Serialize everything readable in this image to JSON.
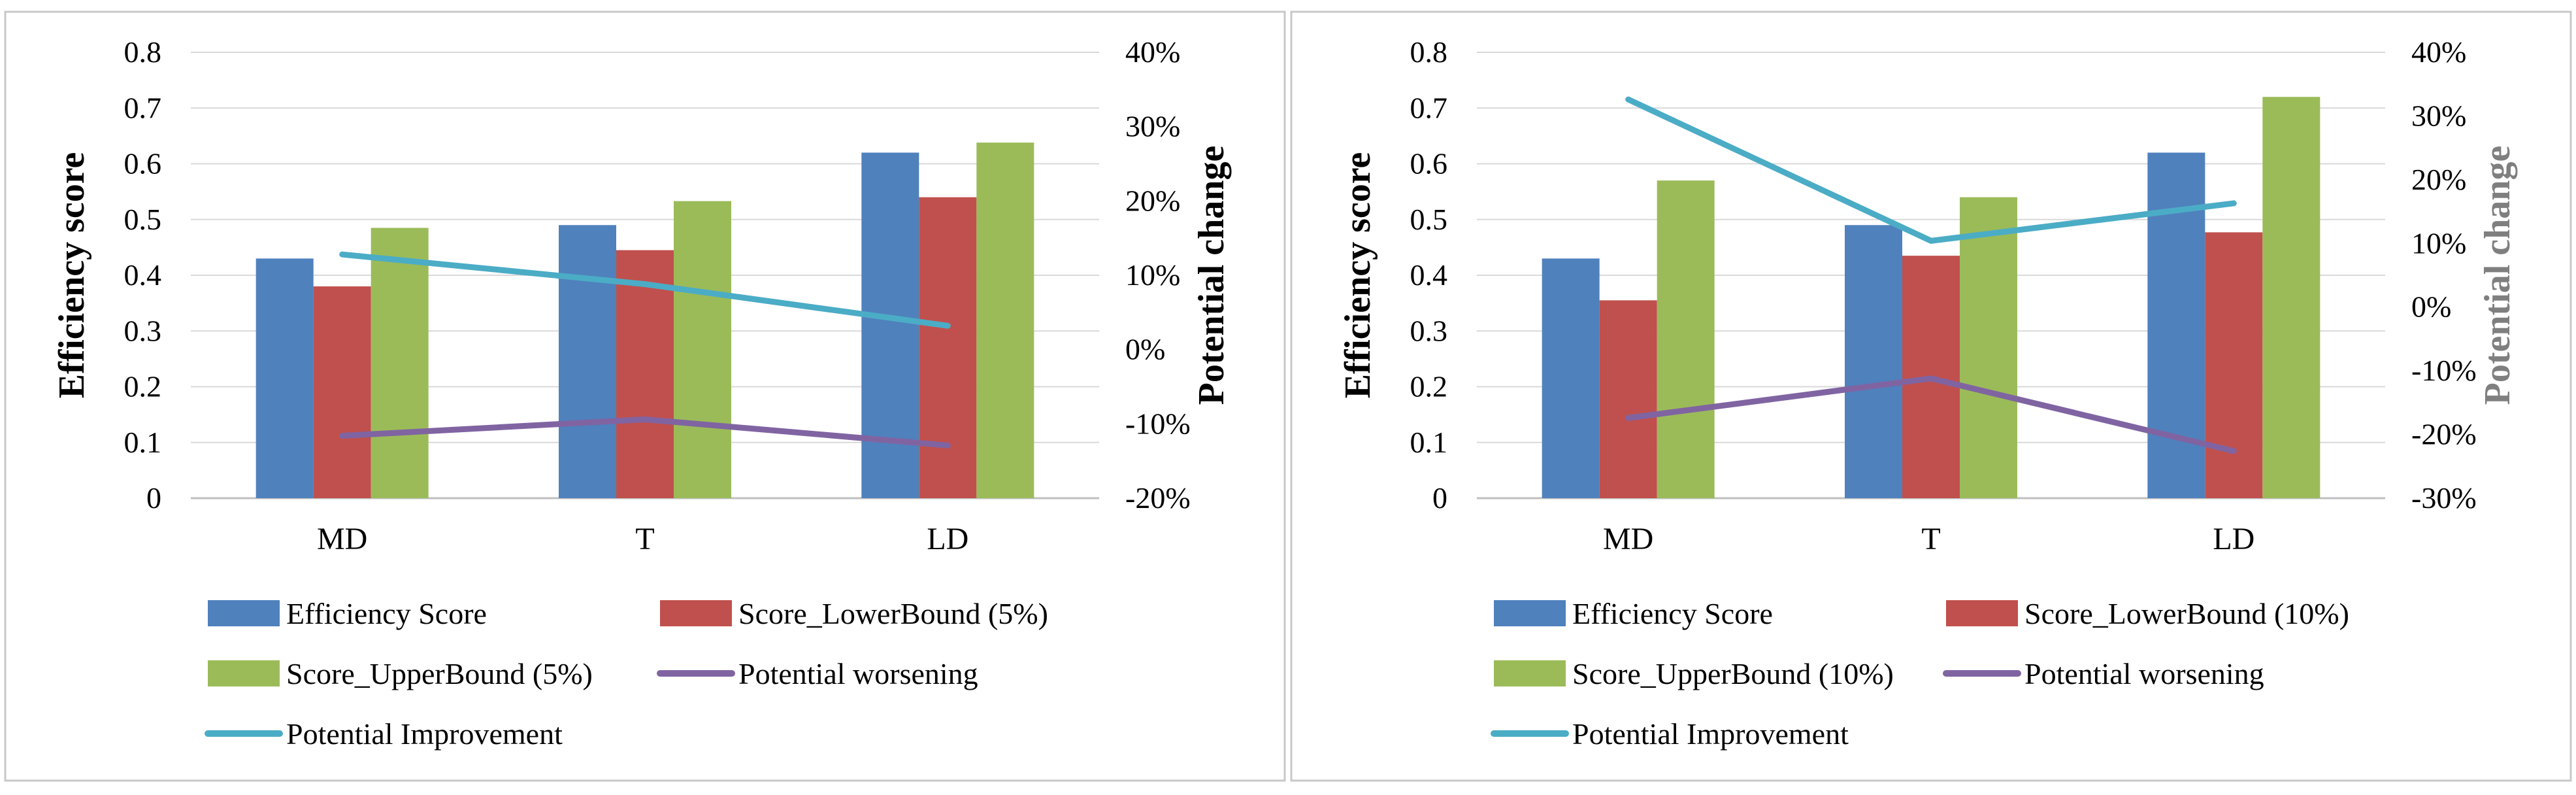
{
  "chart_data": [
    {
      "type": "bar",
      "categories": [
        "MD",
        "T",
        "LD"
      ],
      "ylabel": "Efficiency score",
      "ylabel2": "Potential change",
      "ylim": [
        0,
        0.8
      ],
      "yticks": [
        "0",
        "0.1",
        "0.2",
        "0.3",
        "0.4",
        "0.5",
        "0.6",
        "0.7",
        "0.8"
      ],
      "ylim2": [
        -20,
        40
      ],
      "yticks2": [
        "-20%",
        "-10%",
        "0%",
        "10%",
        "20%",
        "30%",
        "40%"
      ],
      "series": [
        {
          "name": "Efficiency Score",
          "kind": "bar",
          "axis": "left",
          "color": "#4F81BD",
          "values": [
            0.43,
            0.49,
            0.62
          ]
        },
        {
          "name": "Score_LowerBound (5%)",
          "kind": "bar",
          "axis": "left",
          "color": "#C0504D",
          "values": [
            0.38,
            0.445,
            0.54
          ]
        },
        {
          "name": "Score_UpperBound (5%)",
          "kind": "bar",
          "axis": "left",
          "color": "#9BBB59",
          "values": [
            0.485,
            0.533,
            0.638
          ]
        },
        {
          "name": "Potential worsening",
          "kind": "line",
          "axis": "right",
          "color": "#8064A2",
          "values": [
            -11.6,
            -9.4,
            -12.9
          ]
        },
        {
          "name": "Potential Improvement",
          "kind": "line",
          "axis": "right",
          "color": "#4BACC6",
          "values": [
            12.8,
            8.8,
            3.2
          ]
        }
      ]
    },
    {
      "type": "bar",
      "categories": [
        "MD",
        "T",
        "LD"
      ],
      "ylabel": "Efficiency score",
      "ylabel2": "Potential change",
      "ylim": [
        0,
        0.8
      ],
      "yticks": [
        "0",
        "0.1",
        "0.2",
        "0.3",
        "0.4",
        "0.5",
        "0.6",
        "0.7",
        "0.8"
      ],
      "ylim2": [
        -30,
        40
      ],
      "yticks2": [
        "-30%",
        "-20%",
        "-10%",
        "0%",
        "10%",
        "20%",
        "30%",
        "40%"
      ],
      "series": [
        {
          "name": "Efficiency Score",
          "kind": "bar",
          "axis": "left",
          "color": "#4F81BD",
          "values": [
            0.43,
            0.49,
            0.62
          ]
        },
        {
          "name": "Score_LowerBound (10%)",
          "kind": "bar",
          "axis": "left",
          "color": "#C0504D",
          "values": [
            0.355,
            0.435,
            0.477
          ]
        },
        {
          "name": "Score_UpperBound (10%)",
          "kind": "bar",
          "axis": "left",
          "color": "#9BBB59",
          "values": [
            0.57,
            0.54,
            0.72
          ]
        },
        {
          "name": "Potential worsening",
          "kind": "line",
          "axis": "right",
          "color": "#8064A2",
          "values": [
            -17.4,
            -11.2,
            -22.6
          ]
        },
        {
          "name": "Potential Improvement",
          "kind": "line",
          "axis": "right",
          "color": "#4BACC6",
          "values": [
            32.6,
            10.4,
            16.3
          ]
        }
      ]
    }
  ]
}
